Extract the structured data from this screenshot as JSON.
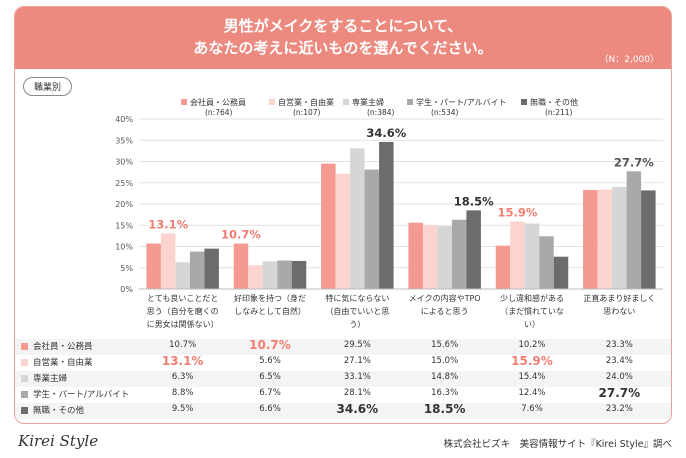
{
  "header": {
    "title_line1": "男性がメイクをすることについて、",
    "title_line2": "あなたの考えに近いものを選んでください。",
    "n_label": "（N：2,000）"
  },
  "occupation_label": "職業別",
  "footer": {
    "logo": "Kirei Style",
    "source": "株式会社ビズキ　美容情報サイト『Kirei Style』調べ"
  },
  "chart_data": {
    "type": "bar",
    "ylim": [
      0,
      40
    ],
    "yticks": [
      "0%",
      "5%",
      "10%",
      "15%",
      "20%",
      "25%",
      "30%",
      "35%",
      "40%"
    ],
    "categories": [
      [
        "とても良いことだと",
        "思う（自分を磨くの",
        "に男女は関係ない）"
      ],
      [
        "好印象を持つ（身だ",
        "しなみとして自然）"
      ],
      [
        "特に気にならない",
        "（自由でいいと思",
        "う）"
      ],
      [
        "メイクの内容やTPO",
        "によると思う"
      ],
      [
        "少し違和感がある",
        "（まだ慣れていな",
        "い）"
      ],
      [
        "正直あまり好ましく",
        "思わない"
      ]
    ],
    "series": [
      {
        "name": "会社員・公務員",
        "n": "(n:764)",
        "color": "#f49a90",
        "values": [
          10.7,
          10.7,
          29.5,
          15.6,
          10.2,
          23.3
        ]
      },
      {
        "name": "自営業・自由業",
        "n": "(n:107)",
        "color": "#fbd3cf",
        "values": [
          13.1,
          5.6,
          27.1,
          15.0,
          15.9,
          23.4
        ]
      },
      {
        "name": "専業主婦",
        "n": "(n:384)",
        "color": "#d6d6d6",
        "values": [
          6.3,
          6.5,
          33.1,
          14.8,
          15.4,
          24.0
        ]
      },
      {
        "name": "学生・パート/アルバイト",
        "n": "(n:534)",
        "color": "#a9a9a9",
        "values": [
          8.8,
          6.7,
          28.1,
          16.3,
          12.4,
          27.7
        ]
      },
      {
        "name": "無職・その他",
        "n": "(n:211)",
        "color": "#6c6c6c",
        "values": [
          9.5,
          6.6,
          34.6,
          18.5,
          7.6,
          23.2
        ]
      }
    ],
    "highlights": [
      {
        "category": 0,
        "series": 1,
        "label": "13.1%",
        "color": "#f27d73"
      },
      {
        "category": 1,
        "series": 0,
        "label": "10.7%",
        "color": "#f27d73"
      },
      {
        "category": 2,
        "series": 4,
        "label": "34.6%",
        "color": "#333333"
      },
      {
        "category": 3,
        "series": 4,
        "label": "18.5%",
        "color": "#333333"
      },
      {
        "category": 4,
        "series": 1,
        "label": "15.9%",
        "color": "#f27d73"
      },
      {
        "category": 5,
        "series": 3,
        "label": "27.7%",
        "color": "#555555"
      }
    ],
    "table_rows": [
      [
        "10.7%",
        "10.7%",
        "29.5%",
        "15.6%",
        "10.2%",
        "23.3%"
      ],
      [
        "13.1%",
        "5.6%",
        "27.1%",
        "15.0%",
        "15.9%",
        "23.4%"
      ],
      [
        "6.3%",
        "6.5%",
        "33.1%",
        "14.8%",
        "15.4%",
        "24.0%"
      ],
      [
        "8.8%",
        "6.7%",
        "28.1%",
        "16.3%",
        "12.4%",
        "27.7%"
      ],
      [
        "9.5%",
        "6.6%",
        "34.6%",
        "18.5%",
        "7.6%",
        "23.2%"
      ]
    ]
  }
}
